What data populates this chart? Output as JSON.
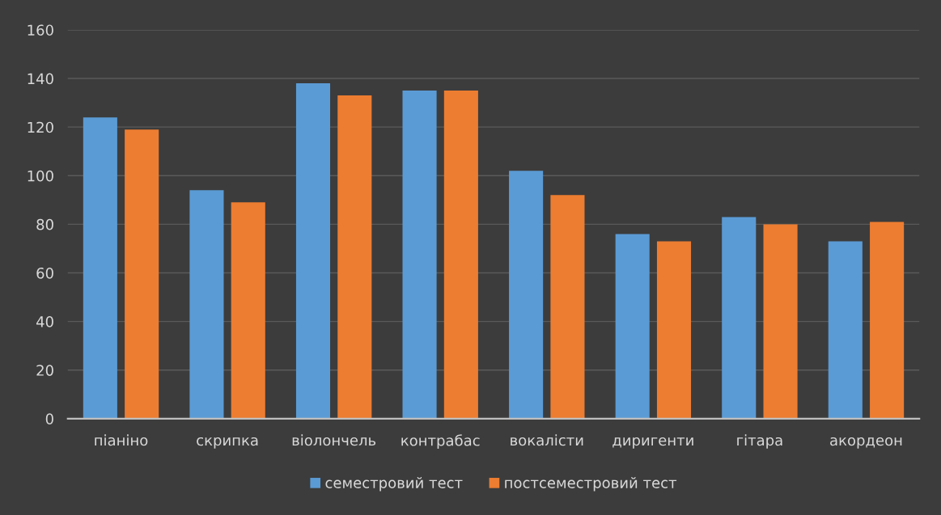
{
  "chart_data": {
    "type": "bar",
    "categories": [
      "піаніно",
      "скрипка",
      "віолончель",
      "контрабас",
      "вокалісти",
      "диригенти",
      "гітара",
      "акордеон"
    ],
    "series": [
      {
        "name": "семестровий тест",
        "color": "#5b9bd5",
        "values": [
          124,
          94,
          138,
          135,
          102,
          76,
          83,
          73
        ]
      },
      {
        "name": "постсеместровий тест",
        "color": "#ed7d31",
        "values": [
          119,
          89,
          133,
          135,
          92,
          73,
          80,
          81
        ]
      }
    ],
    "ylim": [
      0,
      160
    ],
    "yticks": [
      0,
      20,
      40,
      60,
      80,
      100,
      120,
      140,
      160
    ],
    "grid": "y",
    "legend": "bottom"
  }
}
